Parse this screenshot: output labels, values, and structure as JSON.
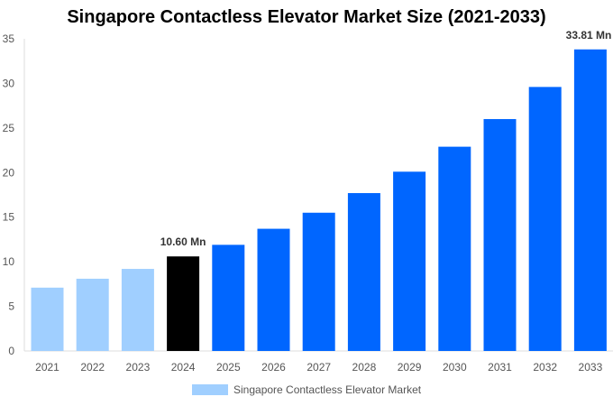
{
  "chart_data": {
    "type": "bar",
    "title": "Singapore Contactless Elevator Market Size (2021-2033)",
    "categories": [
      "2021",
      "2022",
      "2023",
      "2024",
      "2025",
      "2026",
      "2027",
      "2028",
      "2029",
      "2030",
      "2031",
      "2032",
      "2033"
    ],
    "series": [
      {
        "name": "Singapore Contactless Elevator Market",
        "values": [
          7.1,
          8.1,
          9.2,
          10.6,
          11.9,
          13.7,
          15.5,
          17.7,
          20.1,
          22.9,
          26.0,
          29.6,
          33.81
        ]
      }
    ],
    "data_labels": {
      "3": "10.60 Mn",
      "12": "33.81 Mn"
    },
    "bar_colors": {
      "historical": "#a0cfff",
      "current": "#000000",
      "forecast": "#0066ff"
    },
    "period_index": {
      "current": 3
    },
    "ylim": [
      0,
      35
    ],
    "yticks": [
      0,
      5,
      10,
      15,
      20,
      25,
      30,
      35
    ],
    "xlabel": "",
    "ylabel": "",
    "grid": false,
    "legend_position": "bottom"
  }
}
